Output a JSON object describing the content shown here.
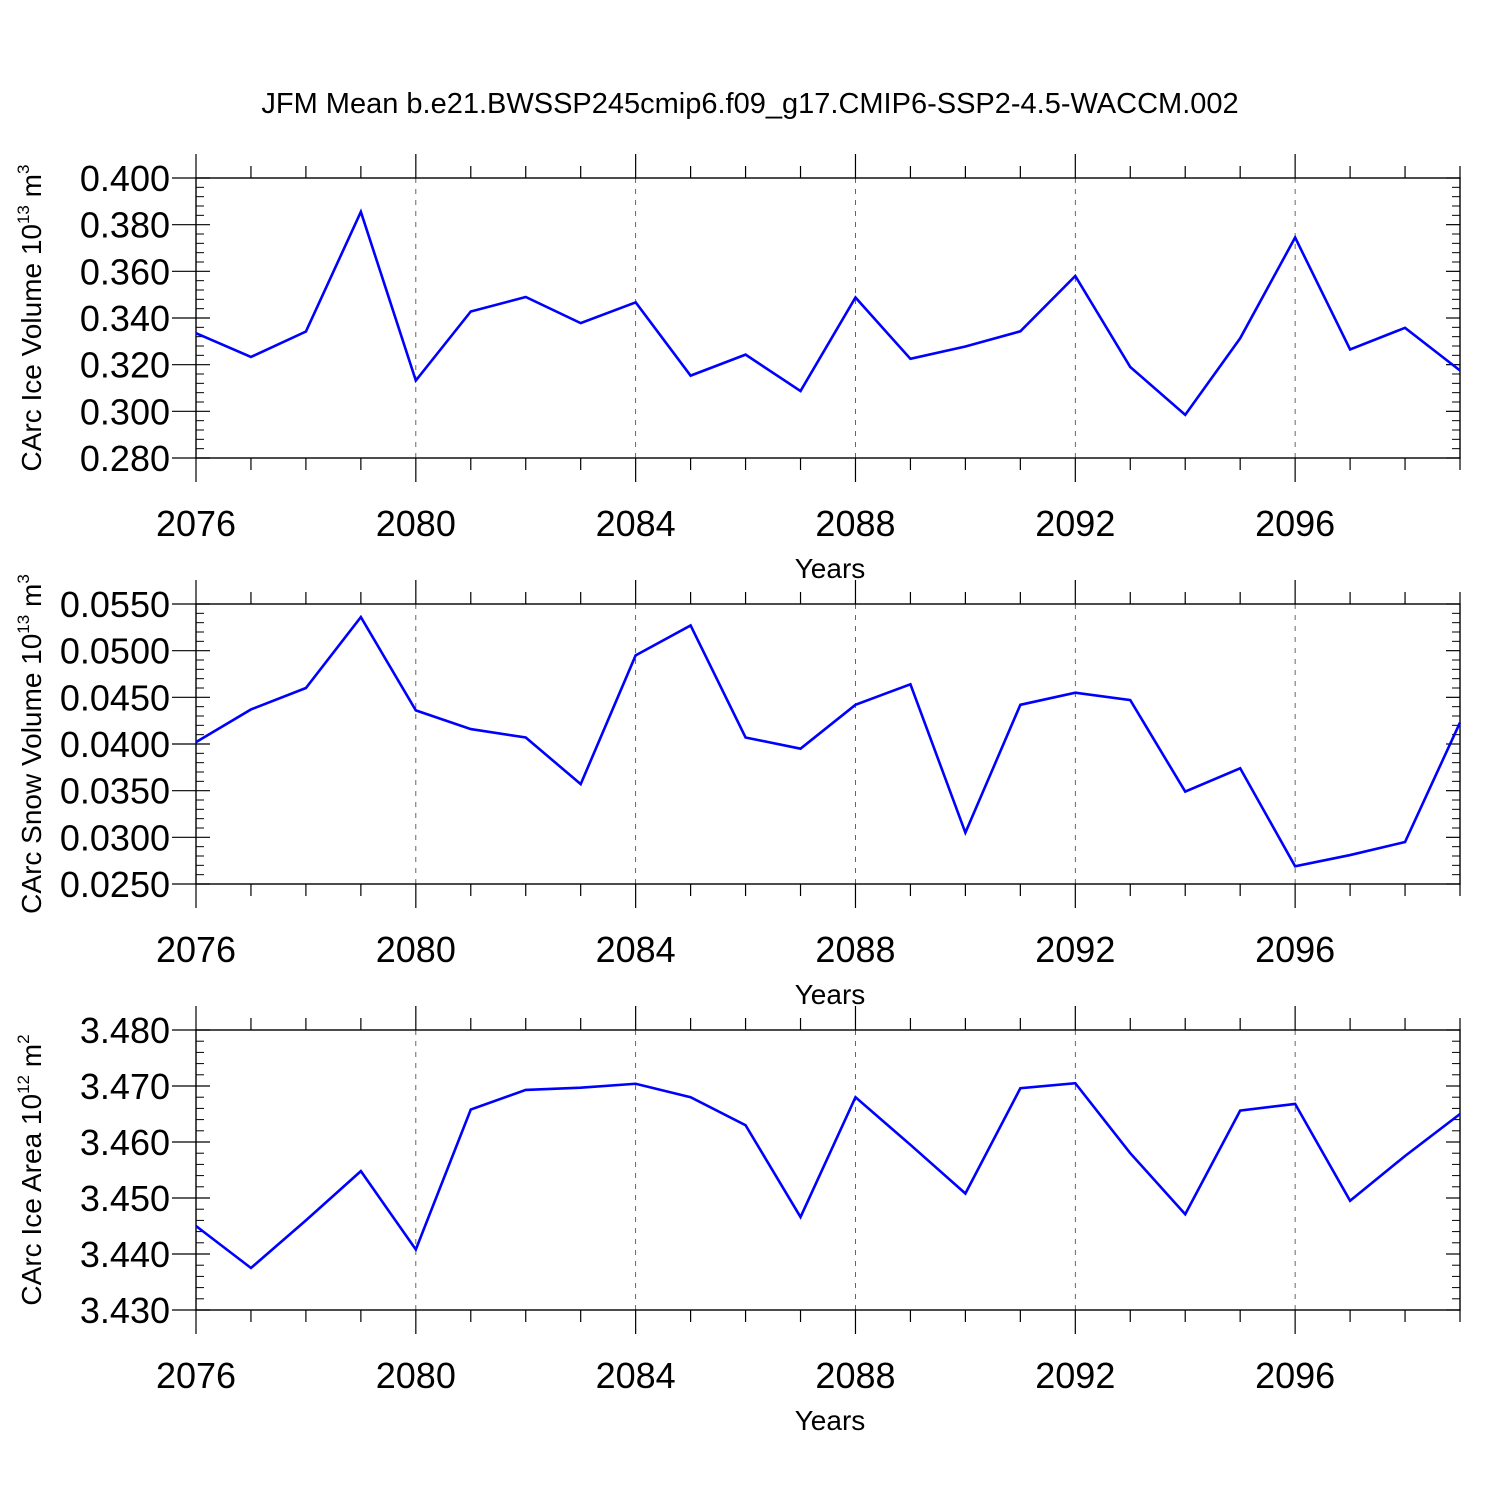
{
  "title": "JFM Mean b.e21.BWSSP245cmip6.f09_g17.CMIP6-SSP2-4.5-WACCM.002",
  "colors": {
    "line": "#0000ff",
    "axes": "#000000",
    "grid": "#000000"
  },
  "chart_data": [
    {
      "type": "line",
      "ylabel": {
        "main": "CArc Ice Volume 10",
        "exp": "13",
        "unit": " m",
        "unit_exp": "3"
      },
      "xlabel": "Years",
      "xlim": [
        2076,
        2099
      ],
      "ylim": [
        0.28,
        0.4
      ],
      "yticks": [
        "0.280",
        "0.300",
        "0.320",
        "0.340",
        "0.360",
        "0.380",
        "0.400"
      ],
      "xticks": [
        "2076",
        "2080",
        "2084",
        "2088",
        "2092",
        "2096"
      ],
      "grid": "vertical dashed at major x ticks",
      "x": [
        2076,
        2077,
        2078,
        2079,
        2080,
        2081,
        2082,
        2083,
        2084,
        2085,
        2086,
        2087,
        2088,
        2089,
        2090,
        2091,
        2092,
        2093,
        2094,
        2095,
        2096,
        2097,
        2098,
        2099
      ],
      "values": [
        0.3335,
        0.3233,
        0.3342,
        0.3855,
        0.3132,
        0.3428,
        0.349,
        0.3378,
        0.3467,
        0.3153,
        0.3243,
        0.3087,
        0.3488,
        0.3225,
        0.3278,
        0.3343,
        0.358,
        0.319,
        0.2985,
        0.3313,
        0.3745,
        0.3265,
        0.3358,
        0.3175
      ]
    },
    {
      "type": "line",
      "ylabel": {
        "main": "CArc Snow Volume 10",
        "exp": "13",
        "unit": " m",
        "unit_exp": "3"
      },
      "xlabel": "Years",
      "xlim": [
        2076,
        2099
      ],
      "ylim": [
        0.025,
        0.055
      ],
      "yticks": [
        "0.0250",
        "0.0300",
        "0.0350",
        "0.0400",
        "0.0450",
        "0.0500",
        "0.0550"
      ],
      "xticks": [
        "2076",
        "2080",
        "2084",
        "2088",
        "2092",
        "2096"
      ],
      "grid": "vertical dashed at major x ticks",
      "x": [
        2076,
        2077,
        2078,
        2079,
        2080,
        2081,
        2082,
        2083,
        2084,
        2085,
        2086,
        2087,
        2088,
        2089,
        2090,
        2091,
        2092,
        2093,
        2094,
        2095,
        2096,
        2097,
        2098,
        2099
      ],
      "values": [
        0.0402,
        0.0437,
        0.046,
        0.0536,
        0.0436,
        0.0416,
        0.0407,
        0.0357,
        0.0495,
        0.0527,
        0.0407,
        0.0395,
        0.0442,
        0.0464,
        0.0305,
        0.0442,
        0.0455,
        0.0447,
        0.0349,
        0.0374,
        0.0269,
        0.0281,
        0.0295,
        0.0423
      ]
    },
    {
      "type": "line",
      "ylabel": {
        "main": "CArc Ice Area 10",
        "exp": "12",
        "unit": " m",
        "unit_exp": "2"
      },
      "xlabel": "Years",
      "xlim": [
        2076,
        2099
      ],
      "ylim": [
        3.43,
        3.48
      ],
      "yticks": [
        "3.430",
        "3.440",
        "3.450",
        "3.460",
        "3.470",
        "3.480"
      ],
      "xticks": [
        "2076",
        "2080",
        "2084",
        "2088",
        "2092",
        "2096"
      ],
      "grid": "vertical dashed at major x ticks",
      "x": [
        2076,
        2077,
        2078,
        2079,
        2080,
        2081,
        2082,
        2083,
        2084,
        2085,
        2086,
        2087,
        2088,
        2089,
        2090,
        2091,
        2092,
        2093,
        2094,
        2095,
        2096,
        2097,
        2098,
        2099
      ],
      "values": [
        3.445,
        3.4375,
        3.446,
        3.4548,
        3.4408,
        3.4658,
        3.4693,
        3.4697,
        3.4704,
        3.468,
        3.463,
        3.4466,
        3.468,
        3.4595,
        3.4508,
        3.4696,
        3.4705,
        3.458,
        3.4471,
        3.4656,
        3.4668,
        3.4495,
        3.4575,
        3.465
      ]
    }
  ]
}
